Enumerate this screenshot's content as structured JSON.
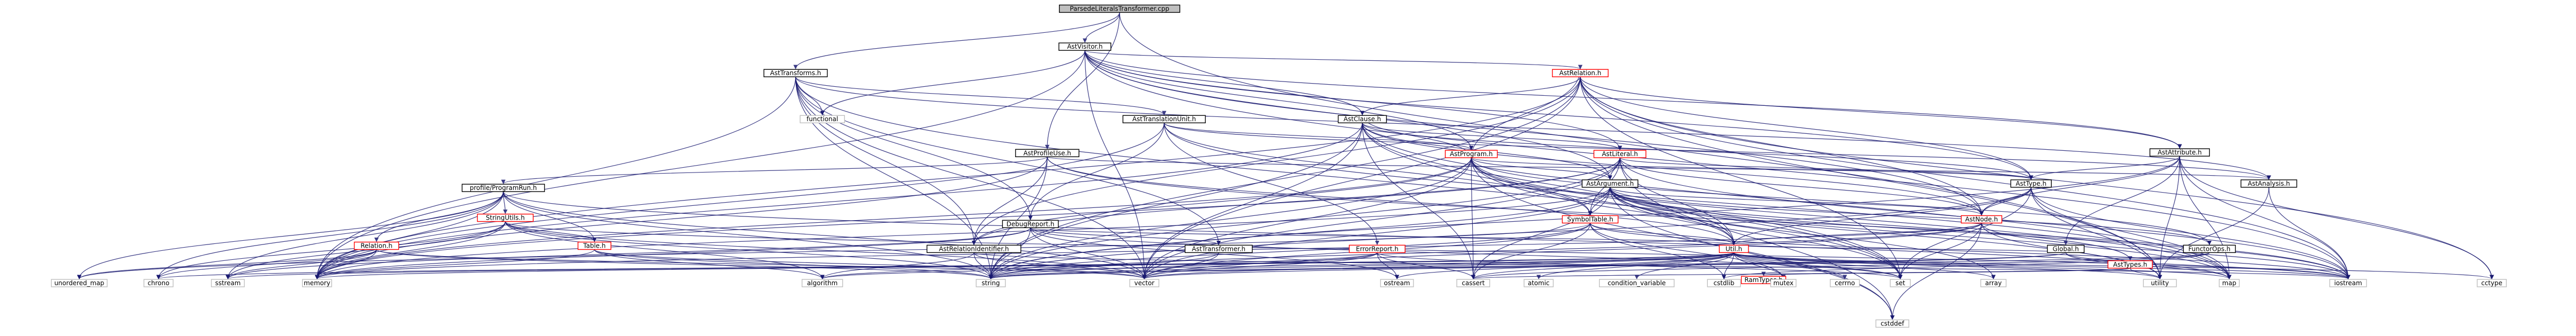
{
  "title": "ParsedeLiteralsTransformer.cpp",
  "nodes": [
    {
      "id": "root",
      "label": "ParsedeLiteralsTransformer.cpp",
      "kind": "main"
    },
    {
      "id": "visitor",
      "label": "AstVisitor.h",
      "kind": "plain"
    },
    {
      "id": "transforms",
      "label": "AstTransforms.h",
      "kind": "plain"
    },
    {
      "id": "relation",
      "label": "AstRelation.h",
      "kind": "red"
    },
    {
      "id": "functional",
      "label": "functional",
      "kind": "ext"
    },
    {
      "id": "tu",
      "label": "AstTranslationUnit.h",
      "kind": "plain"
    },
    {
      "id": "clause",
      "label": "AstClause.h",
      "kind": "plain"
    },
    {
      "id": "program",
      "label": "AstProgram.h",
      "kind": "red"
    },
    {
      "id": "literal",
      "label": "AstLiteral.h",
      "kind": "red"
    },
    {
      "id": "attribute",
      "label": "AstAttribute.h",
      "kind": "plain"
    },
    {
      "id": "profile",
      "label": "AstProfileUse.h",
      "kind": "plain"
    },
    {
      "id": "argument",
      "label": "AstArgument.h",
      "kind": "plain"
    },
    {
      "id": "asttype",
      "label": "AstType.h",
      "kind": "plain"
    },
    {
      "id": "analysis",
      "label": "AstAnalysis.h",
      "kind": "plain"
    },
    {
      "id": "profilerun",
      "label": "profile/ProgramRun.h",
      "kind": "plain"
    },
    {
      "id": "stringutils",
      "label": "StringUtils.h",
      "kind": "red"
    },
    {
      "id": "table",
      "label": "Table.h",
      "kind": "red"
    },
    {
      "id": "relationprof",
      "label": "Relation.h",
      "kind": "red"
    },
    {
      "id": "debugreport",
      "label": "DebugReport.h",
      "kind": "plain"
    },
    {
      "id": "symboltable",
      "label": "SymbolTable.h",
      "kind": "red"
    },
    {
      "id": "astnode",
      "label": "AstNode.h",
      "kind": "red"
    },
    {
      "id": "relid",
      "label": "AstRelationIdentifier.h",
      "kind": "plain"
    },
    {
      "id": "transformer",
      "label": "AstTransformer.h",
      "kind": "plain"
    },
    {
      "id": "errorreport",
      "label": "ErrorReport.h",
      "kind": "red"
    },
    {
      "id": "util",
      "label": "Util.h",
      "kind": "red"
    },
    {
      "id": "global",
      "label": "Global.h",
      "kind": "plain"
    },
    {
      "id": "functorops",
      "label": "FunctorOps.h",
      "kind": "plain"
    },
    {
      "id": "asttypes",
      "label": "AstTypes.h",
      "kind": "red"
    },
    {
      "id": "ramtypes",
      "label": "RamTypes.h",
      "kind": "red"
    },
    {
      "id": "unordered_map",
      "label": "unordered_map",
      "kind": "ext"
    },
    {
      "id": "chrono",
      "label": "chrono",
      "kind": "ext"
    },
    {
      "id": "sstream",
      "label": "sstream",
      "kind": "ext"
    },
    {
      "id": "memory",
      "label": "memory",
      "kind": "ext"
    },
    {
      "id": "algorithm",
      "label": "algorithm",
      "kind": "ext"
    },
    {
      "id": "string",
      "label": "string",
      "kind": "ext"
    },
    {
      "id": "vector",
      "label": "vector",
      "kind": "ext"
    },
    {
      "id": "ostream",
      "label": "ostream",
      "kind": "ext"
    },
    {
      "id": "cassert",
      "label": "cassert",
      "kind": "ext"
    },
    {
      "id": "atomic",
      "label": "atomic",
      "kind": "ext"
    },
    {
      "id": "condition_variable",
      "label": "condition_variable",
      "kind": "ext"
    },
    {
      "id": "cstdlib",
      "label": "cstdlib",
      "kind": "ext"
    },
    {
      "id": "mutex",
      "label": "mutex",
      "kind": "ext"
    },
    {
      "id": "cerrno",
      "label": "cerrno",
      "kind": "ext"
    },
    {
      "id": "set",
      "label": "set",
      "kind": "ext"
    },
    {
      "id": "array",
      "label": "array",
      "kind": "ext"
    },
    {
      "id": "utility",
      "label": "utility",
      "kind": "ext"
    },
    {
      "id": "map",
      "label": "map",
      "kind": "ext"
    },
    {
      "id": "iostream",
      "label": "iostream",
      "kind": "ext"
    },
    {
      "id": "cctype",
      "label": "cctype",
      "kind": "ext"
    },
    {
      "id": "cstddef",
      "label": "cstddef",
      "kind": "ext"
    }
  ],
  "edges": [
    [
      "root",
      "visitor"
    ],
    [
      "root",
      "transforms"
    ],
    [
      "root",
      "profile"
    ],
    [
      "root",
      "utility"
    ],
    [
      "visitor",
      "relation"
    ],
    [
      "visitor",
      "clause"
    ],
    [
      "visitor",
      "program"
    ],
    [
      "visitor",
      "literal"
    ],
    [
      "visitor",
      "attribute"
    ],
    [
      "visitor",
      "argument"
    ],
    [
      "visitor",
      "asttype"
    ],
    [
      "visitor",
      "astnode"
    ],
    [
      "visitor",
      "functional"
    ],
    [
      "visitor",
      "memory"
    ],
    [
      "visitor",
      "vector"
    ],
    [
      "visitor",
      "iostream"
    ],
    [
      "transforms",
      "functional"
    ],
    [
      "transforms",
      "tu"
    ],
    [
      "transforms",
      "debugreport"
    ],
    [
      "transforms",
      "transformer"
    ],
    [
      "transforms",
      "relid"
    ],
    [
      "transforms",
      "string"
    ],
    [
      "transforms",
      "vector"
    ],
    [
      "transforms",
      "set"
    ],
    [
      "transforms",
      "memory"
    ],
    [
      "transforms",
      "analysis"
    ],
    [
      "relation",
      "clause"
    ],
    [
      "relation",
      "attribute"
    ],
    [
      "relation",
      "astnode"
    ],
    [
      "relation",
      "relid"
    ],
    [
      "relation",
      "asttype"
    ],
    [
      "relation",
      "set"
    ],
    [
      "relation",
      "string"
    ],
    [
      "relation",
      "vector"
    ],
    [
      "relation",
      "iostream"
    ],
    [
      "relation",
      "cctype"
    ],
    [
      "relation",
      "memory"
    ],
    [
      "relation",
      "utility"
    ],
    [
      "tu",
      "program"
    ],
    [
      "tu",
      "debugreport"
    ],
    [
      "tu",
      "errorreport"
    ],
    [
      "tu",
      "analysis"
    ],
    [
      "tu",
      "symboltable"
    ],
    [
      "tu",
      "memory"
    ],
    [
      "tu",
      "map"
    ],
    [
      "clause",
      "literal"
    ],
    [
      "clause",
      "argument"
    ],
    [
      "clause",
      "astnode"
    ],
    [
      "clause",
      "asttype"
    ],
    [
      "clause",
      "util"
    ],
    [
      "clause",
      "vector"
    ],
    [
      "clause",
      "string"
    ],
    [
      "clause",
      "set"
    ],
    [
      "clause",
      "map"
    ],
    [
      "clause",
      "memory"
    ],
    [
      "clause",
      "cassert"
    ],
    [
      "program",
      "relation"
    ],
    [
      "program",
      "clause"
    ],
    [
      "program",
      "asttype"
    ],
    [
      "program",
      "argument"
    ],
    [
      "program",
      "util"
    ],
    [
      "program",
      "relid"
    ],
    [
      "program",
      "string"
    ],
    [
      "program",
      "vector"
    ],
    [
      "program",
      "map"
    ],
    [
      "program",
      "set"
    ],
    [
      "program",
      "cassert"
    ],
    [
      "program",
      "cstddef"
    ],
    [
      "program",
      "memory"
    ],
    [
      "program",
      "functorops"
    ],
    [
      "program",
      "symboltable"
    ],
    [
      "literal",
      "argument"
    ],
    [
      "literal",
      "relid"
    ],
    [
      "literal",
      "astnode"
    ],
    [
      "literal",
      "asttype"
    ],
    [
      "literal",
      "util"
    ],
    [
      "literal",
      "string"
    ],
    [
      "literal",
      "vector"
    ],
    [
      "literal",
      "memory"
    ],
    [
      "literal",
      "iostream"
    ],
    [
      "literal",
      "cstddef"
    ],
    [
      "literal",
      "symboltable"
    ],
    [
      "attribute",
      "asttype"
    ],
    [
      "attribute",
      "astnode"
    ],
    [
      "attribute",
      "string"
    ],
    [
      "attribute",
      "iostream"
    ],
    [
      "attribute",
      "global"
    ],
    [
      "attribute",
      "map"
    ],
    [
      "attribute",
      "utility"
    ],
    [
      "attribute",
      "cctype"
    ],
    [
      "profile",
      "analysis"
    ],
    [
      "profile",
      "profilerun"
    ],
    [
      "profile",
      "relid"
    ],
    [
      "profile",
      "memory"
    ],
    [
      "profile",
      "string"
    ],
    [
      "profile",
      "iostream"
    ],
    [
      "profile",
      "util"
    ],
    [
      "argument",
      "astnode"
    ],
    [
      "argument",
      "asttypes"
    ],
    [
      "argument",
      "functorops"
    ],
    [
      "argument",
      "symboltable"
    ],
    [
      "argument",
      "util"
    ],
    [
      "argument",
      "string"
    ],
    [
      "argument",
      "vector"
    ],
    [
      "argument",
      "cassert"
    ],
    [
      "argument",
      "memory"
    ],
    [
      "argument",
      "cstddef"
    ],
    [
      "argument",
      "utility"
    ],
    [
      "argument",
      "iostream"
    ],
    [
      "argument",
      "map"
    ],
    [
      "argument",
      "set"
    ],
    [
      "argument",
      "array"
    ],
    [
      "asttype",
      "astnode"
    ],
    [
      "asttype",
      "util"
    ],
    [
      "asttype",
      "string"
    ],
    [
      "asttype",
      "set"
    ],
    [
      "asttype",
      "map"
    ],
    [
      "asttype",
      "utility"
    ],
    [
      "asttype",
      "iostream"
    ],
    [
      "analysis",
      "iostream"
    ],
    [
      "analysis",
      "utility"
    ],
    [
      "profilerun",
      "stringutils"
    ],
    [
      "profilerun",
      "table"
    ],
    [
      "profilerun",
      "relationprof"
    ],
    [
      "profilerun",
      "unordered_map"
    ],
    [
      "profilerun",
      "chrono"
    ],
    [
      "profilerun",
      "sstream"
    ],
    [
      "profilerun",
      "memory"
    ],
    [
      "profilerun",
      "string"
    ],
    [
      "profilerun",
      "vector"
    ],
    [
      "profilerun",
      "map"
    ],
    [
      "stringutils",
      "table"
    ],
    [
      "stringutils",
      "chrono"
    ],
    [
      "stringutils",
      "sstream"
    ],
    [
      "stringutils",
      "memory"
    ],
    [
      "stringutils",
      "string"
    ],
    [
      "stringutils",
      "vector"
    ],
    [
      "stringutils",
      "algorithm"
    ],
    [
      "stringutils",
      "iostream"
    ],
    [
      "table",
      "algorithm"
    ],
    [
      "table",
      "memory"
    ],
    [
      "table",
      "vector"
    ],
    [
      "table",
      "string"
    ],
    [
      "relationprof",
      "unordered_map"
    ],
    [
      "relationprof",
      "chrono"
    ],
    [
      "relationprof",
      "sstream"
    ],
    [
      "relationprof",
      "memory"
    ],
    [
      "relationprof",
      "string"
    ],
    [
      "relationprof",
      "vector"
    ],
    [
      "debugreport",
      "util"
    ],
    [
      "debugreport",
      "transformer"
    ],
    [
      "debugreport",
      "sstream"
    ],
    [
      "debugreport",
      "string"
    ],
    [
      "debugreport",
      "vector"
    ],
    [
      "debugreport",
      "memory"
    ],
    [
      "debugreport",
      "set"
    ],
    [
      "debugreport",
      "ostream"
    ],
    [
      "symboltable",
      "util"
    ],
    [
      "symboltable",
      "iostream"
    ],
    [
      "symboltable",
      "string"
    ],
    [
      "symboltable",
      "vector"
    ],
    [
      "symboltable",
      "cassert"
    ],
    [
      "symboltable",
      "cstdlib"
    ],
    [
      "symboltable",
      "unordered_map"
    ],
    [
      "symboltable",
      "mutex"
    ],
    [
      "astnode",
      "util"
    ],
    [
      "astnode",
      "cstddef"
    ],
    [
      "astnode",
      "utility"
    ],
    [
      "astnode",
      "iostream"
    ],
    [
      "astnode",
      "vector"
    ],
    [
      "astnode",
      "memory"
    ],
    [
      "astnode",
      "string"
    ],
    [
      "astnode",
      "set"
    ],
    [
      "relid",
      "algorithm"
    ],
    [
      "relid",
      "string"
    ],
    [
      "relid",
      "vector"
    ],
    [
      "relid",
      "iostream"
    ],
    [
      "transformer",
      "string"
    ],
    [
      "transformer",
      "vector"
    ],
    [
      "errorreport",
      "ostream"
    ],
    [
      "errorreport",
      "set"
    ],
    [
      "errorreport",
      "string"
    ],
    [
      "errorreport",
      "vector"
    ],
    [
      "errorreport",
      "cassert"
    ],
    [
      "errorreport",
      "algorithm"
    ],
    [
      "util",
      "algorithm"
    ],
    [
      "util",
      "string"
    ],
    [
      "util",
      "vector"
    ],
    [
      "util",
      "ostream"
    ],
    [
      "util",
      "cassert"
    ],
    [
      "util",
      "atomic"
    ],
    [
      "util",
      "condition_variable"
    ],
    [
      "util",
      "cstdlib"
    ],
    [
      "util",
      "mutex"
    ],
    [
      "util",
      "cerrno"
    ],
    [
      "util",
      "set"
    ],
    [
      "util",
      "array"
    ],
    [
      "util",
      "utility"
    ],
    [
      "util",
      "map"
    ],
    [
      "util",
      "iostream"
    ],
    [
      "util",
      "cctype"
    ],
    [
      "util",
      "sstream"
    ],
    [
      "util",
      "memory"
    ],
    [
      "util",
      "chrono"
    ],
    [
      "global",
      "util"
    ],
    [
      "global",
      "map"
    ],
    [
      "global",
      "iostream"
    ],
    [
      "global",
      "string"
    ],
    [
      "global",
      "vector"
    ],
    [
      "functorops",
      "cstdlib"
    ],
    [
      "functorops",
      "cassert"
    ],
    [
      "functorops",
      "string"
    ],
    [
      "asttypes",
      "ramtypes"
    ],
    [
      "asttypes",
      "utility"
    ],
    [
      "asttypes",
      "cassert"
    ]
  ]
}
